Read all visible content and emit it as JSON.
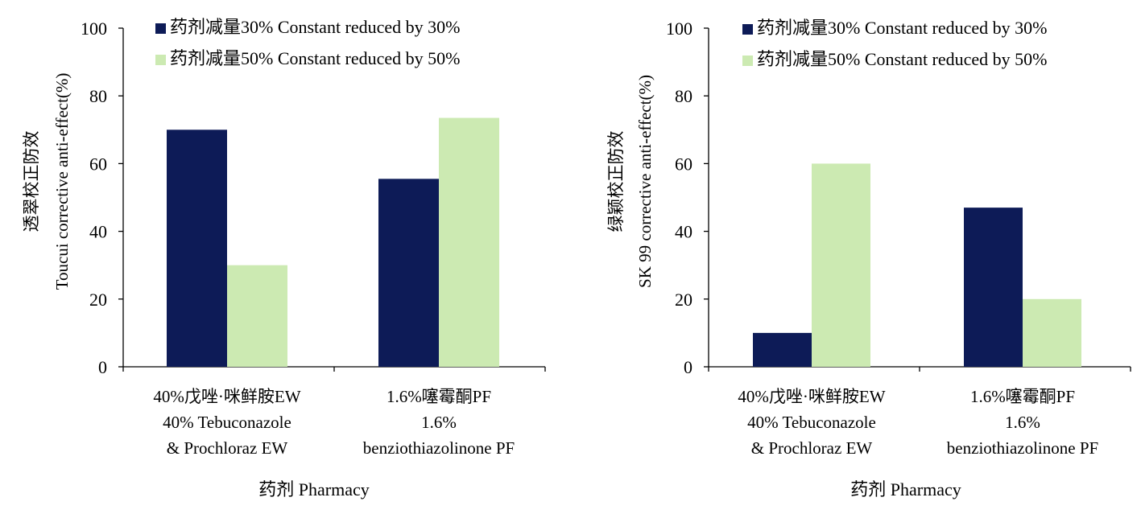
{
  "chart_data": [
    {
      "type": "bar",
      "categories": [
        [
          "40%戊唑·咪鲜胺EW",
          "40% Tebuconazole",
          "& Prochloraz  EW"
        ],
        [
          "1.6%噻霉酮PF",
          "1.6%",
          "benziothiazolinone  PF"
        ]
      ],
      "series": [
        {
          "name": "药剂减量30% Constant reduced by 30%",
          "color": "#0d1b57",
          "values": [
            70,
            55.5
          ]
        },
        {
          "name": "药剂减量50% Constant reduced by 50%",
          "color": "#cceab2",
          "values": [
            30,
            73.5
          ]
        }
      ],
      "ylabel": [
        "透翠校正防效",
        "Toucui  corrective  anti-effect(%)"
      ],
      "xlabel": "药剂 Pharmacy",
      "ylim": [
        0,
        100
      ],
      "yticks": [
        0,
        20,
        40,
        60,
        80,
        100
      ],
      "grid": false,
      "legend": "top-right"
    },
    {
      "type": "bar",
      "categories": [
        [
          "40%戊唑·咪鲜胺EW",
          "40% Tebuconazole",
          "& Prochloraz  EW"
        ],
        [
          "1.6%噻霉酮PF",
          "1.6%",
          "benziothiazolinone  PF"
        ]
      ],
      "series": [
        {
          "name": "药剂减量30% Constant reduced by 30%",
          "color": "#0d1b57",
          "values": [
            10,
            47
          ]
        },
        {
          "name": "药剂减量50% Constant reduced by 50%",
          "color": "#cceab2",
          "values": [
            60,
            20
          ]
        }
      ],
      "ylabel": [
        "绿颖校正防效",
        "SK 99 corrective  anti-effect(%)"
      ],
      "xlabel": "药剂 Pharmacy",
      "ylim": [
        0,
        100
      ],
      "yticks": [
        0,
        20,
        40,
        60,
        80,
        100
      ],
      "grid": false,
      "legend": "top-right"
    }
  ]
}
